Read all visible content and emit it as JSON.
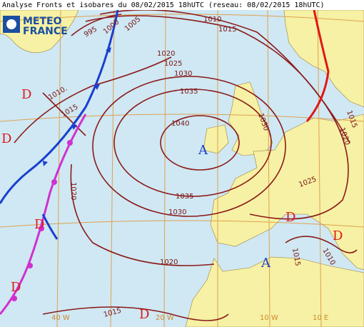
{
  "header": {
    "title": "Analyse Fronts et isobares du 08/02/2015 18hUTC (reseau: 08/02/2015 18hUTC)"
  },
  "logo": {
    "line1": "METEO",
    "line2": "FRANCE"
  },
  "isobar_labels": [
    "995",
    "1000",
    "1005",
    "1010.",
    "1015",
    "1020",
    "1025",
    "1030",
    "1035",
    "1040",
    "1035",
    "1030",
    "1020",
    "1020",
    "1015",
    "1010.",
    "1015",
    "1015",
    "1025",
    "1030",
    "1020",
    "1015",
    "1010"
  ],
  "centers": [
    "A",
    "A",
    "D",
    "D",
    "D",
    "D",
    "D",
    "D",
    "D"
  ],
  "longitudes": [
    "40 W",
    "20 W",
    "10 W",
    "10 E"
  ]
}
